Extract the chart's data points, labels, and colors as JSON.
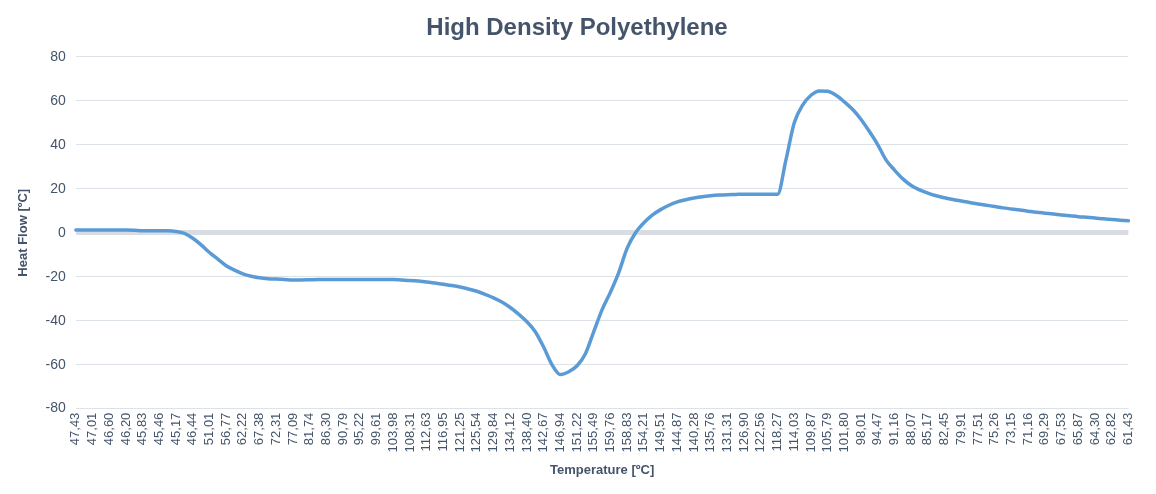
{
  "chart_data": {
    "type": "line",
    "title": "High Density Polyethylene",
    "xlabel": "Temperature [ºC]",
    "ylabel": "Heat Flow [ºC]",
    "categories": [
      "47,43",
      null,
      "47,01",
      null,
      "46,60",
      null,
      "46,20",
      null,
      "45,83",
      null,
      "45,46",
      null,
      "45,17",
      null,
      "46,44",
      null,
      "51,01",
      null,
      "56,77",
      null,
      "62,22",
      null,
      "67,38",
      null,
      "72,31",
      null,
      "77,09",
      null,
      "81,74",
      null,
      "86,30",
      null,
      "90,79",
      null,
      "95,22",
      null,
      "99,61",
      null,
      "103,98",
      null,
      "108,31",
      null,
      "112,63",
      null,
      "116,95",
      null,
      "121,25",
      null,
      "125,54",
      null,
      "129,84",
      null,
      "134,12",
      null,
      "138,40",
      null,
      "142,67",
      null,
      "146,94",
      null,
      "151,22",
      null,
      "155,49",
      null,
      "159,76",
      null,
      "158,83",
      null,
      "154,21",
      null,
      "149,51",
      null,
      "144,87",
      null,
      "140,28",
      null,
      "135,76",
      null,
      "131,31",
      null,
      "126,90",
      null,
      "122,56",
      null,
      "118,27",
      null,
      "114,03",
      null,
      "109,87",
      null,
      "105,79",
      null,
      "101,80",
      null,
      "98,01",
      null,
      "94,47",
      null,
      "91,16",
      null,
      "88,07",
      null,
      "85,17",
      null,
      "82,45",
      null,
      "79,91",
      null,
      "77,51",
      null,
      "75,26",
      null,
      "73,15",
      null,
      "71,16",
      null,
      "69,29",
      null,
      "67,53",
      null,
      "65,87",
      null,
      "64,30",
      null,
      "62,82",
      null,
      "61,43"
    ],
    "series": [
      {
        "color": "#5b9bd5",
        "values": [
          1.2,
          1.2,
          1.2,
          1.2,
          1.2,
          1.2,
          1.2,
          1.1,
          0.9,
          0.9,
          0.9,
          0.9,
          0.6,
          -0.3,
          -2.5,
          -5.5,
          -9,
          -12,
          -15,
          -17,
          -18.7,
          -19.8,
          -20.5,
          -20.9,
          -21.1,
          -21.3,
          -21.5,
          -21.5,
          -21.4,
          -21.3,
          -21.3,
          -21.3,
          -21.3,
          -21.3,
          -21.3,
          -21.3,
          -21.3,
          -21.3,
          -21.3,
          -21.5,
          -21.7,
          -22,
          -22.4,
          -22.9,
          -23.4,
          -24,
          -24.7,
          -25.6,
          -26.6,
          -28,
          -29.6,
          -31.5,
          -34,
          -37,
          -40.5,
          -45,
          -52,
          -60,
          -64.5,
          -63.2,
          -60.5,
          -55,
          -45,
          -35,
          -27,
          -18,
          -7,
          0,
          4.5,
          8,
          10.5,
          12.5,
          14,
          15,
          15.8,
          16.4,
          16.8,
          17.1,
          17.3,
          17.4,
          17.5,
          17.5,
          17.5,
          17.5,
          17.5,
          33,
          50,
          58,
          62.5,
          64.5,
          64.3,
          62.5,
          59.5,
          56,
          51.5,
          46,
          40,
          33,
          28.5,
          24.5,
          21.5,
          19.5,
          18,
          16.8,
          15.9,
          15.1,
          14.4,
          13.7,
          13.1,
          12.5,
          11.9,
          11.3,
          10.8,
          10.3,
          9.8,
          9.3,
          8.9,
          8.5,
          8.1,
          7.7,
          7.3,
          7,
          6.7,
          6.3,
          6,
          5.7,
          5.4
        ]
      }
    ],
    "ylim": [
      -80,
      80
    ],
    "yticks": [
      -80,
      -60,
      -40,
      -20,
      0,
      20,
      40,
      60,
      80
    ],
    "grid": "y",
    "marker": "none",
    "line_style": "solid",
    "legend": false
  }
}
